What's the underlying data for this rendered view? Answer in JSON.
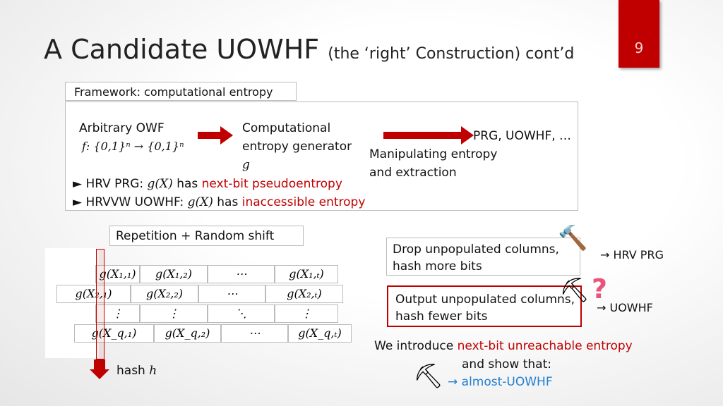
{
  "title": {
    "main": "A Candidate UOWHF",
    "sub": "(the ‘right’ Construction) cont’d",
    "page": "9"
  },
  "framework": {
    "tab": "Framework: computational entropy",
    "owf_label": "Arbitrary OWF",
    "owf_formula": "f: {0,1}ⁿ → {0,1}ⁿ",
    "gen_line1": "Computational",
    "gen_line2": "entropy generator",
    "gen_var": "g",
    "manip_line1": "Manipulating entropy",
    "manip_line2": "and extraction",
    "result": "PRG, UOWHF, …",
    "bullet1_pre": "► HRV PRG: ",
    "bullet1_math": "g(X)",
    "bullet1_mid": " has ",
    "bullet1_red": "next-bit pseudoentropy",
    "bullet2_pre": "► HRVVW UOWHF: ",
    "bullet2_math": "g(X)",
    "bullet2_mid": " has ",
    "bullet2_red": "inaccessible entropy"
  },
  "repetition_label": "Repetition + Random shift",
  "table": {
    "rows": [
      [
        "g(X₁,₁)",
        "g(X₁,₂)",
        "⋯",
        "g(X₁,ₜ)"
      ],
      [
        "g(X₂,₁)",
        "g(X₂,₂)",
        "⋯",
        "g(X₂,ₜ)"
      ],
      [
        "⋮",
        "⋮",
        "⋱",
        "⋮"
      ],
      [
        "g(X_q,₁)",
        "g(X_q,₂)",
        "⋯",
        "g(X_q,ₜ)"
      ]
    ]
  },
  "hash_label": "hash ",
  "hash_var": "h",
  "drop": {
    "line1": "Drop unpopulated columns,",
    "line2": "hash more bits",
    "result": "→ HRV PRG"
  },
  "output": {
    "line1": "Output unpopulated columns,",
    "line2": "hash fewer bits",
    "result": "→ UOWHF",
    "question": "?"
  },
  "intro": {
    "pre": "We introduce ",
    "red": "next-bit unreachable entropy",
    "line2": "and show that:",
    "result": "→ almost-UOWHF"
  },
  "colors": {
    "accent_red": "#c00000",
    "blue": "#1f7fcf"
  }
}
